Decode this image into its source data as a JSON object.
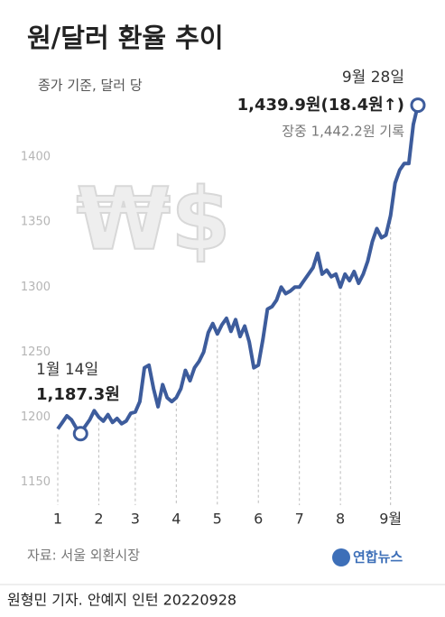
{
  "title": "원/달러 환율 추이",
  "subtitle": "종가 기준, 달러 당",
  "chart_data": {
    "type": "line",
    "color": "#3d5c9c",
    "grid": false,
    "watermark": "₩$",
    "categories": [
      "1",
      null,
      null,
      null,
      null,
      null,
      null,
      null,
      null,
      "2",
      null,
      null,
      null,
      null,
      null,
      null,
      null,
      "3",
      null,
      null,
      null,
      null,
      null,
      null,
      null,
      null,
      "4",
      null,
      null,
      null,
      null,
      null,
      null,
      null,
      null,
      "5",
      null,
      null,
      null,
      null,
      null,
      null,
      null,
      null,
      "6",
      null,
      null,
      null,
      null,
      null,
      null,
      null,
      null,
      "7",
      null,
      null,
      null,
      null,
      null,
      null,
      null,
      null,
      "8",
      null,
      null,
      null,
      null,
      null,
      null,
      null,
      null,
      null,
      null,
      "9월",
      null,
      null,
      null,
      null,
      null,
      null
    ],
    "values": [
      1191,
      1196,
      1201,
      1198,
      1192,
      1187.3,
      1193,
      1198,
      1205,
      1200,
      1197,
      1202,
      1196,
      1199,
      1195,
      1197,
      1203,
      1204,
      1212,
      1238,
      1240,
      1222,
      1208,
      1225,
      1215,
      1212,
      1215,
      1222,
      1236,
      1228,
      1238,
      1243,
      1250,
      1265,
      1272,
      1264,
      1271,
      1276,
      1266,
      1275,
      1262,
      1270,
      1258,
      1238,
      1240,
      1260,
      1283,
      1285,
      1290,
      1300,
      1295,
      1297,
      1300,
      1300,
      1305,
      1310,
      1315,
      1326,
      1310,
      1313,
      1308,
      1310,
      1300,
      1310,
      1305,
      1312,
      1303,
      1310,
      1320,
      1335,
      1345,
      1338,
      1340,
      1355,
      1380,
      1390,
      1395,
      1395,
      1425,
      1439.9
    ],
    "ylim": [
      1140,
      1450
    ],
    "yticks": [
      1150,
      1200,
      1250,
      1300,
      1350,
      1400
    ],
    "annotations": [
      "9월 28일",
      "1,439.9원(18.4원↑)",
      "장중 1,442.2원 기록",
      "1월 14일",
      "1,187.3원"
    ]
  },
  "source": "자료: 서울 외환시장",
  "logo": "연합뉴스",
  "footer": "원형민 기자. 안예지 인턴  20220928"
}
